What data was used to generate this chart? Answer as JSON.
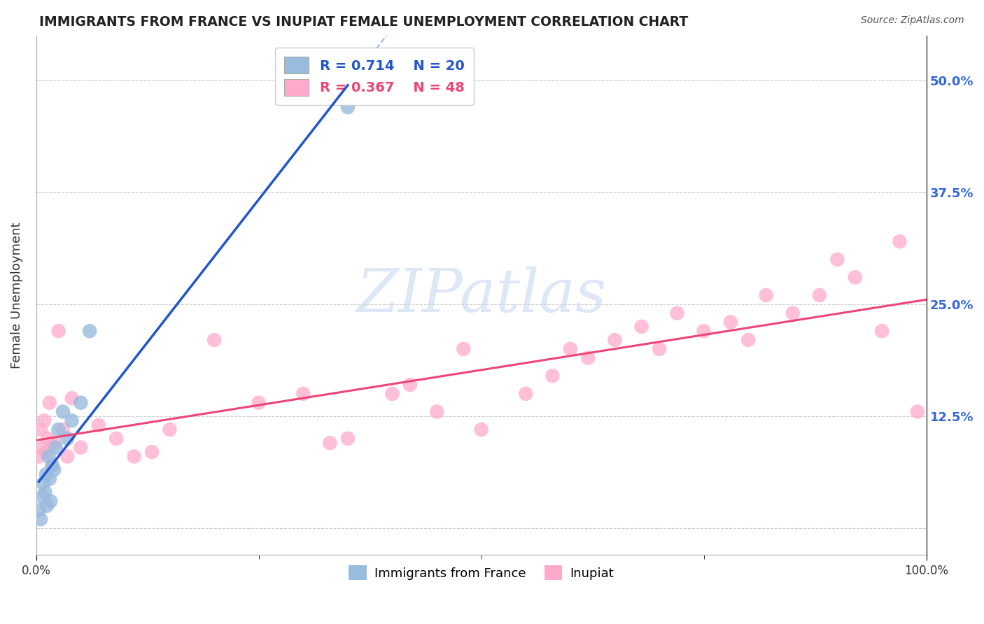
{
  "title": "IMMIGRANTS FROM FRANCE VS INUPIAT FEMALE UNEMPLOYMENT CORRELATION CHART",
  "source": "Source: ZipAtlas.com",
  "ylabel": "Female Unemployment",
  "xlim": [
    0,
    100
  ],
  "ylim": [
    -3,
    55
  ],
  "yticks": [
    0,
    12.5,
    25.0,
    37.5,
    50.0
  ],
  "ytick_labels": [
    "",
    "12.5%",
    "25.0%",
    "37.5%",
    "50.0%"
  ],
  "legend_r1": "R = 0.714",
  "legend_n1": "N = 20",
  "legend_r2": "R = 0.367",
  "legend_n2": "N = 48",
  "blue_color": "#99BBDD",
  "pink_color": "#FFAACC",
  "blue_line_color": "#2255CC",
  "pink_line_color": "#EE4477",
  "blue_x": [
    0.3,
    0.5,
    0.7,
    0.8,
    1.0,
    1.1,
    1.2,
    1.4,
    1.5,
    1.6,
    1.8,
    2.0,
    2.2,
    2.5,
    3.0,
    3.5,
    4.0,
    5.0,
    6.0,
    35.0
  ],
  "blue_y": [
    2.0,
    1.0,
    3.5,
    5.0,
    4.0,
    6.0,
    2.5,
    8.0,
    5.5,
    3.0,
    7.0,
    6.5,
    9.0,
    11.0,
    13.0,
    10.0,
    12.0,
    14.0,
    22.0,
    47.0
  ],
  "pink_x": [
    0.3,
    0.5,
    0.7,
    0.9,
    1.1,
    1.3,
    1.5,
    1.8,
    2.0,
    2.5,
    3.0,
    3.5,
    4.0,
    5.0,
    7.0,
    9.0,
    11.0,
    13.0,
    15.0,
    20.0,
    25.0,
    30.0,
    33.0,
    35.0,
    40.0,
    42.0,
    45.0,
    48.0,
    50.0,
    55.0,
    58.0,
    60.0,
    62.0,
    65.0,
    68.0,
    70.0,
    72.0,
    75.0,
    78.0,
    80.0,
    82.0,
    85.0,
    88.0,
    90.0,
    92.0,
    95.0,
    97.0,
    99.0
  ],
  "pink_y": [
    8.0,
    11.0,
    9.0,
    12.0,
    8.5,
    10.0,
    14.0,
    7.0,
    9.5,
    22.0,
    11.0,
    8.0,
    14.5,
    9.0,
    11.5,
    10.0,
    8.0,
    8.5,
    11.0,
    21.0,
    14.0,
    15.0,
    9.5,
    10.0,
    15.0,
    16.0,
    13.0,
    20.0,
    11.0,
    15.0,
    17.0,
    20.0,
    19.0,
    21.0,
    22.5,
    20.0,
    24.0,
    22.0,
    23.0,
    21.0,
    26.0,
    24.0,
    26.0,
    30.0,
    28.0,
    22.0,
    32.0,
    13.0
  ],
  "watermark_text": "ZIPatlas",
  "watermark_color": "#C8D8F0",
  "background_color": "#FFFFFF",
  "grid_color": "#CCCCCC",
  "tick_label_color": "#3366DD",
  "title_color": "#222222",
  "source_color": "#555555"
}
